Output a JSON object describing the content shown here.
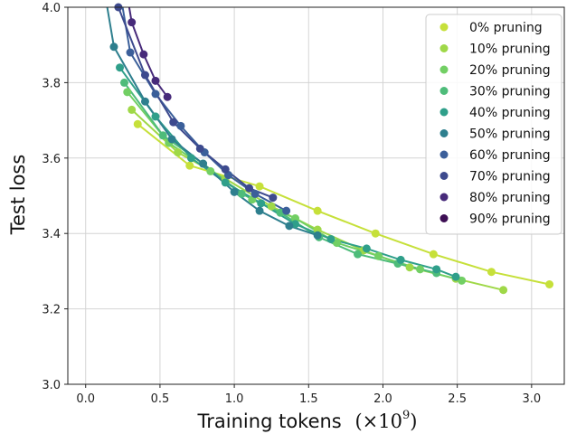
{
  "chart_data": {
    "type": "line",
    "xlabel": "Training tokens",
    "xlabel_suffix": "(×10",
    "xlabel_exp": "9",
    "xlabel_close": ")",
    "ylabel": "Test loss",
    "xlim": [
      -0.12,
      3.22
    ],
    "ylim": [
      3.0,
      4.0
    ],
    "xticks": [
      0.0,
      0.5,
      1.0,
      1.5,
      2.0,
      2.5,
      3.0
    ],
    "xtick_labels": [
      "0.0",
      "0.5",
      "1.0",
      "1.5",
      "2.0",
      "2.5",
      "3.0"
    ],
    "yticks": [
      3.0,
      3.2,
      3.4,
      3.6,
      3.8,
      4.0
    ],
    "ytick_labels": [
      "3.0",
      "3.2",
      "3.4",
      "3.6",
      "3.8",
      "4.0"
    ],
    "grid": true,
    "legend_position": "top-right",
    "series": [
      {
        "name": "0% pruning",
        "color": "#c6e03a",
        "x": [
          0.35,
          0.7,
          1.17,
          1.56,
          1.95,
          2.34,
          2.73,
          3.12
        ],
        "y": [
          3.69,
          3.58,
          3.525,
          3.46,
          3.4,
          3.345,
          3.298,
          3.265
        ]
      },
      {
        "name": "10% pruning",
        "color": "#9fd848",
        "x": [
          0.31,
          0.62,
          0.94,
          1.25,
          1.56,
          1.87,
          2.18,
          2.49,
          2.81
        ],
        "y": [
          3.728,
          3.615,
          3.545,
          3.472,
          3.41,
          3.355,
          3.31,
          3.28,
          3.25
        ]
      },
      {
        "name": "20% pruning",
        "color": "#72cf64",
        "x": [
          0.28,
          0.56,
          0.84,
          1.12,
          1.41,
          1.69,
          1.97,
          2.25,
          2.53
        ],
        "y": [
          3.775,
          3.64,
          3.565,
          3.49,
          3.44,
          3.375,
          3.34,
          3.305,
          3.275
        ]
      },
      {
        "name": "30% pruning",
        "color": "#4ebc7a",
        "x": [
          0.26,
          0.52,
          0.79,
          1.05,
          1.31,
          1.57,
          1.83,
          2.1,
          2.36
        ],
        "y": [
          3.8,
          3.66,
          3.585,
          3.505,
          3.455,
          3.39,
          3.345,
          3.32,
          3.295
        ]
      },
      {
        "name": "40% pruning",
        "color": "#2f9f8a",
        "x": [
          0.23,
          0.47,
          0.71,
          0.94,
          1.18,
          1.41,
          1.65,
          1.89,
          2.12,
          2.36,
          2.49
        ],
        "y": [
          3.84,
          3.71,
          3.6,
          3.535,
          3.48,
          3.425,
          3.385,
          3.36,
          3.33,
          3.305,
          3.285
        ]
      },
      {
        "name": "50% pruning",
        "color": "#2e7f8e",
        "x": [
          0.19,
          0.4,
          0.58,
          0.79,
          1.0,
          1.17,
          1.37,
          1.56
        ],
        "y": [
          3.895,
          3.75,
          3.65,
          3.585,
          3.51,
          3.46,
          3.42,
          3.395
        ]
      },
      {
        "name": "60% pruning",
        "color": "#3b5f9a",
        "x": [
          0.3,
          0.47,
          0.64,
          0.8,
          0.96,
          1.14,
          1.35
        ],
        "y": [
          3.88,
          3.77,
          3.685,
          3.615,
          3.555,
          3.505,
          3.46
        ]
      },
      {
        "name": "70% pruning",
        "color": "#3d4a8e",
        "x": [
          0.22,
          0.4,
          0.59,
          0.77,
          0.94,
          1.1,
          1.26
        ],
        "y": [
          4.0,
          3.82,
          3.695,
          3.625,
          3.57,
          3.52,
          3.495
        ]
      },
      {
        "name": "80% pruning",
        "color": "#472a7a",
        "x": [
          0.31,
          0.39,
          0.47,
          0.55
        ],
        "y": [
          3.96,
          3.875,
          3.805,
          3.762
        ]
      },
      {
        "name": "90% pruning",
        "color": "#3d0f54",
        "x": [],
        "y": []
      }
    ]
  }
}
